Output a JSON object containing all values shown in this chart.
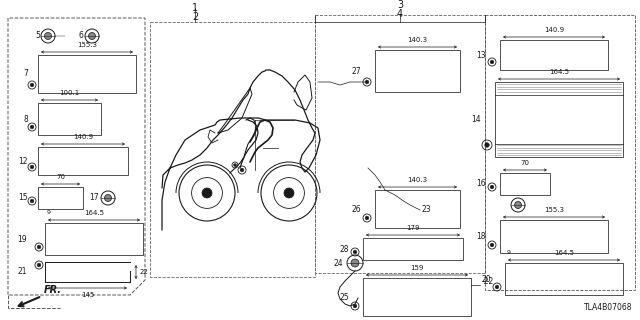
{
  "bg_color": "#ffffff",
  "diagram_code": "TLA4B07068",
  "dark": "#1a1a1a",
  "gray": "#555555",
  "panel_color": "#444444"
}
